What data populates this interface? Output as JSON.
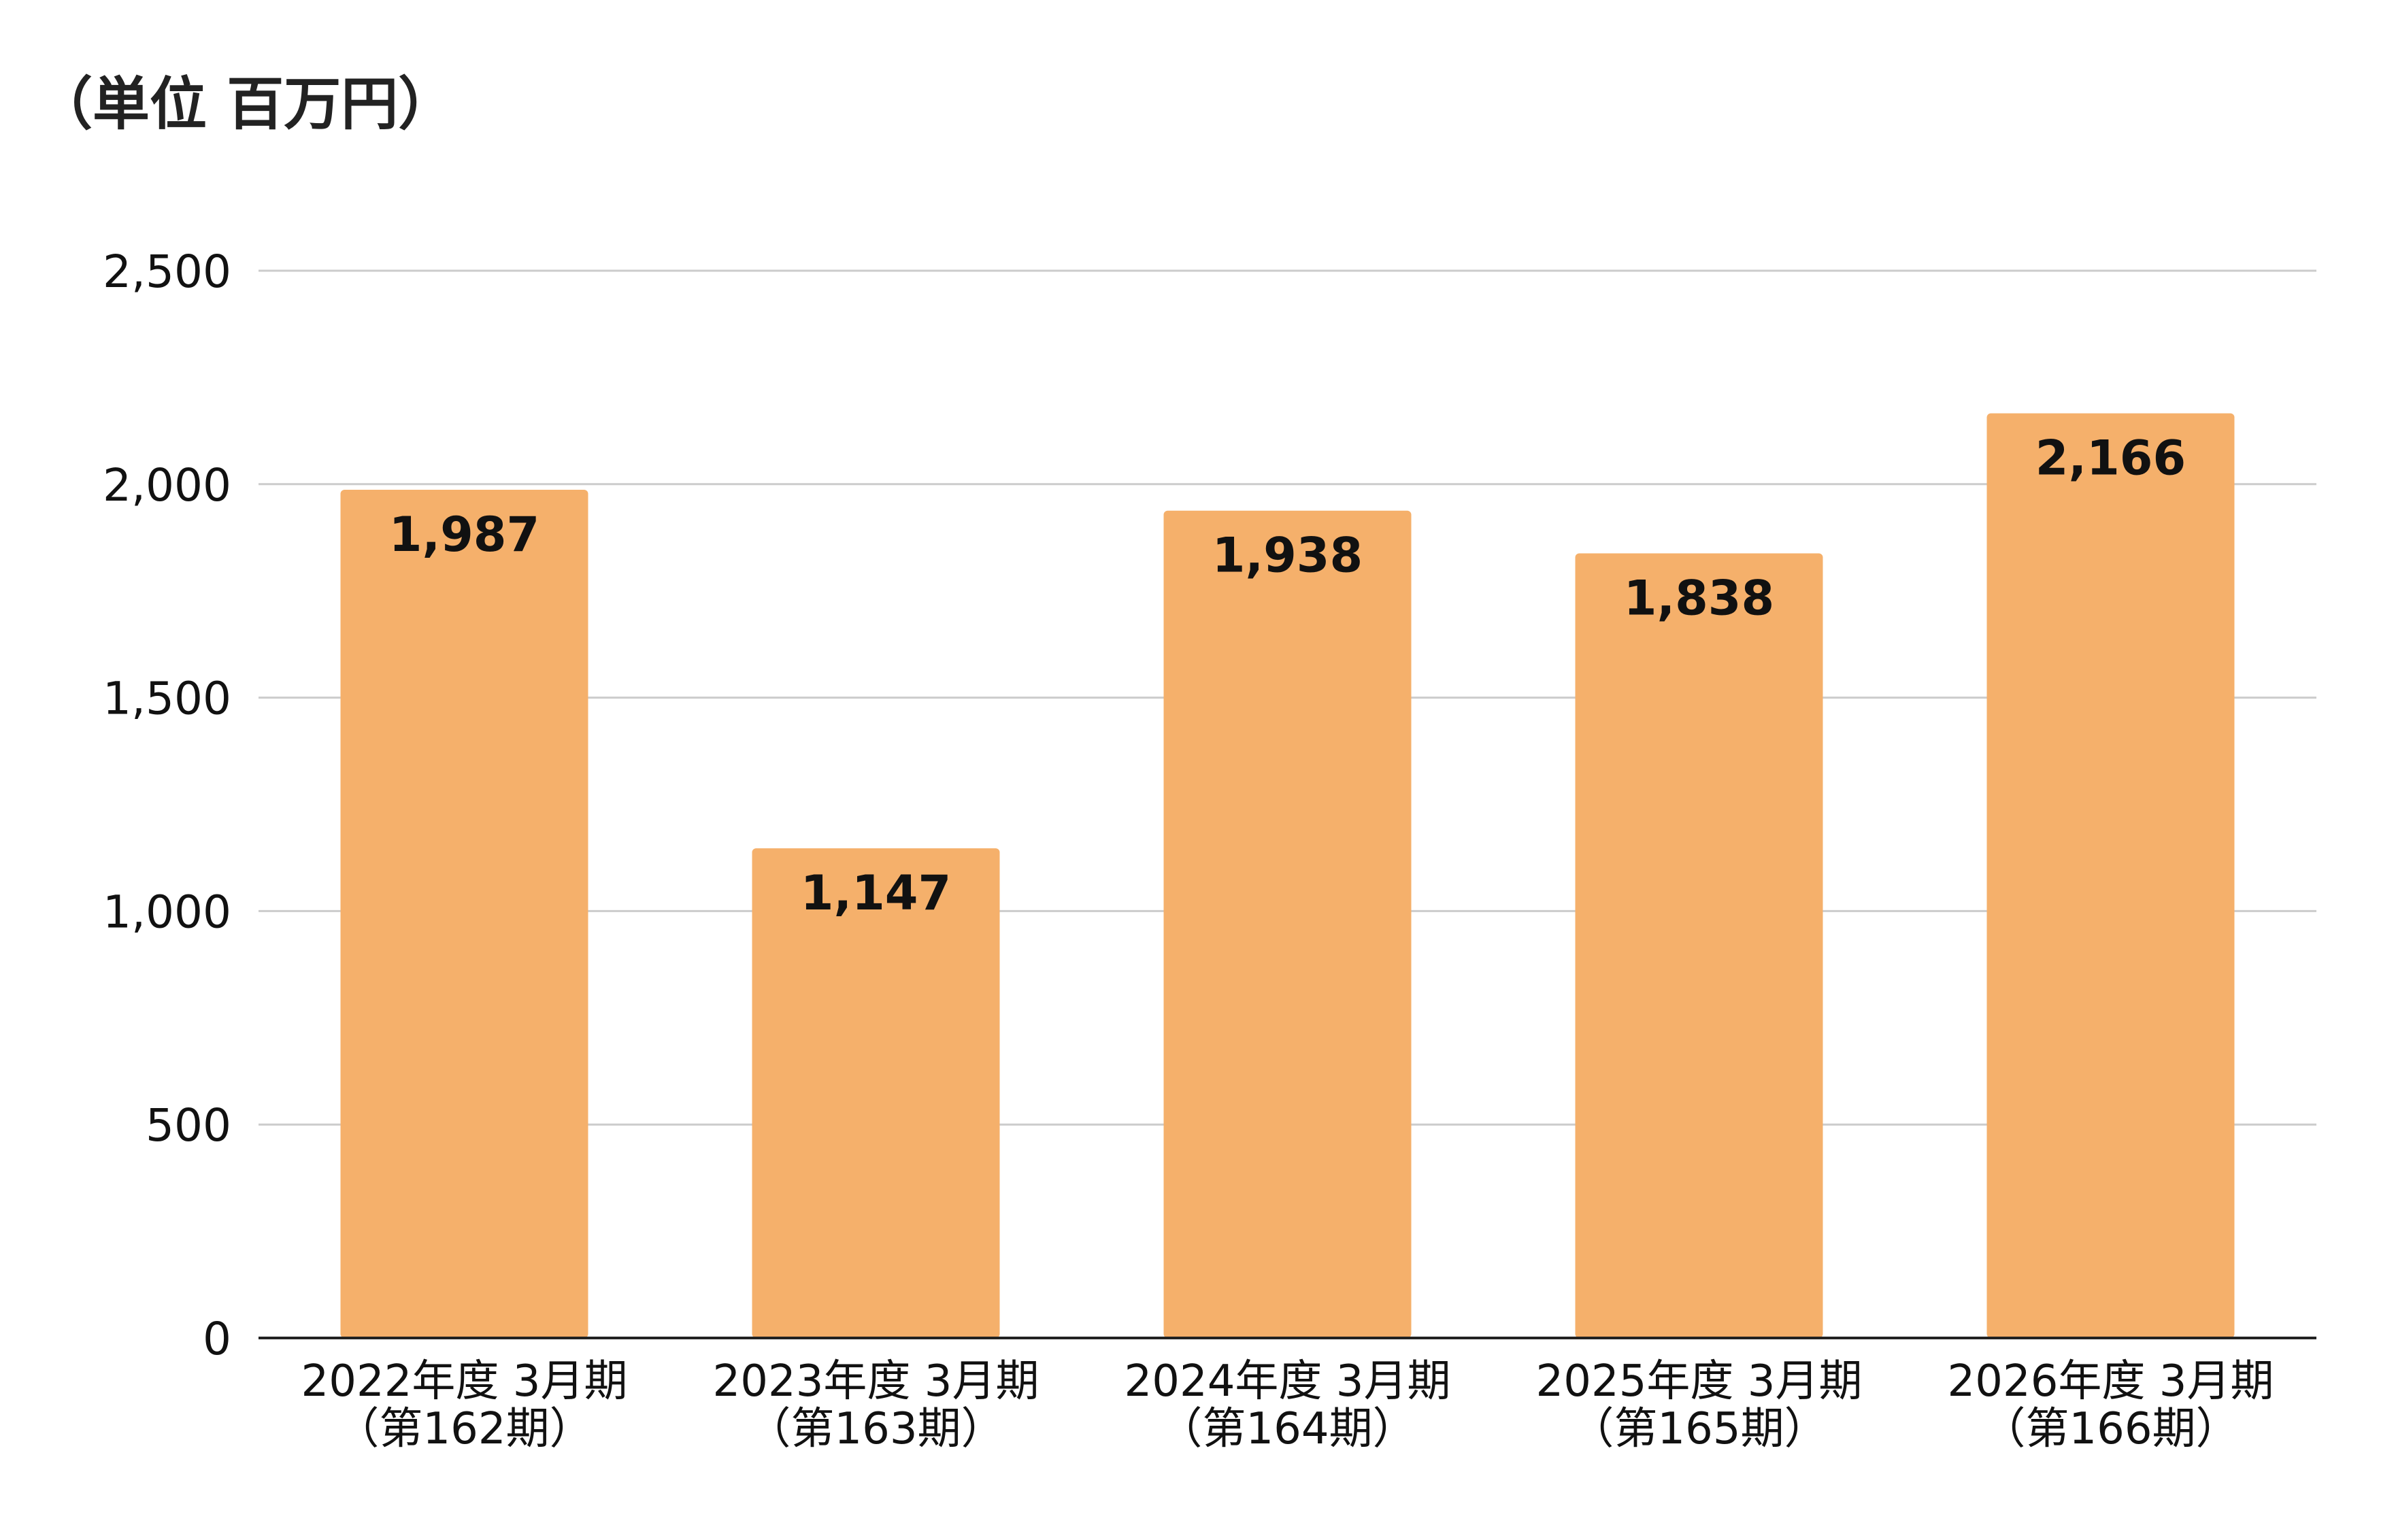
{
  "unit_label": "（単位 百万円）",
  "colors": {
    "bar": "#F5B06B",
    "grid": "#CCCCCC",
    "axis": "#222222",
    "text": "#111111"
  },
  "chart_data": {
    "type": "bar",
    "title": "",
    "xlabel": "",
    "ylabel": "",
    "ylim": [
      0,
      2500
    ],
    "yticks": [
      0,
      500,
      1000,
      1500,
      2000,
      2500
    ],
    "ytick_labels": [
      "0",
      "500",
      "1,000",
      "1,500",
      "2,000",
      "2,500"
    ],
    "grid": true,
    "legend": "none",
    "categories": [
      [
        "2022年度 3月期",
        "（第162期）"
      ],
      [
        "2023年度 3月期",
        "（第163期）"
      ],
      [
        "2024年度 3月期",
        "（第164期）"
      ],
      [
        "2025年度 3月期",
        "（第165期）"
      ],
      [
        "2026年度 3月期",
        "（第166期）"
      ]
    ],
    "values": [
      1987,
      1147,
      1938,
      1838,
      2166
    ],
    "value_labels": [
      "1,987",
      "1,147",
      "1,938",
      "1,838",
      "2,166"
    ]
  }
}
